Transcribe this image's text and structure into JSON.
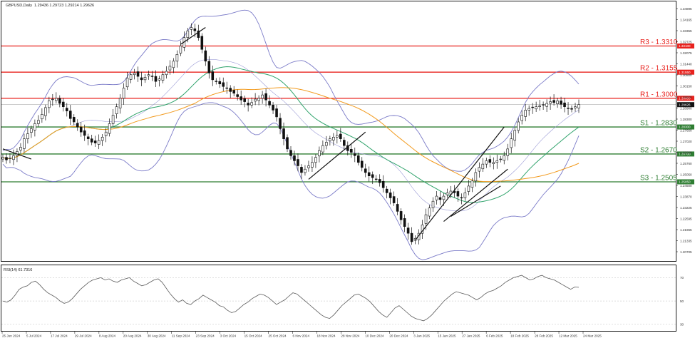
{
  "header": {
    "symbol": "GBPUSD,Daily",
    "ohlc": "1.29436 1.29723 1.29214 1.29626"
  },
  "rsi_label": "RSI(14) 61.7316",
  "chart_data": [
    {
      "type": "candlestick",
      "title": "GBPUSD,Daily",
      "ylim": [
        1.204,
        1.357
      ],
      "y_ticks": [
        "1.34895",
        "1.34165",
        "1.33355",
        "1.32725",
        "1.32075",
        "1.31440",
        "1.30800",
        "1.30150",
        "1.29520",
        "1.28900",
        "1.28300",
        "1.27650",
        "1.27020",
        "1.26390",
        "1.25760",
        "1.25050",
        "1.24500",
        "1.23870",
        "1.23225",
        "1.22595",
        "1.21965",
        "1.21335",
        "1.20705"
      ],
      "x_ticks": [
        "25 Jun 2024",
        "5 Jul 2024",
        "17 Jul 2024",
        "29 Jul 2024",
        "8 Aug 2024",
        "20 Aug 2024",
        "30 Aug 2024",
        "11 Sep 2024",
        "23 Sep 2024",
        "3 Oct 2024",
        "15 Oct 2024",
        "25 Oct 2024",
        "6 Nov 2024",
        "18 Nov 2024",
        "28 Nov 2024",
        "10 Dec 2024",
        "20 Dec 2024",
        "3 Jan 2025",
        "15 Jan 2025",
        "27 Jan 2025",
        "6 Feb 2025",
        "18 Feb 2025",
        "28 Feb 2025",
        "12 Mar 2025",
        "24 Mar 2025"
      ],
      "current_price": "1.29626",
      "levels": [
        {
          "label": "R3 - 1.3310",
          "value": 1.331,
          "tag": "1.33100",
          "color": "#e8221e"
        },
        {
          "label": "R2 - 1.3155",
          "value": 1.3155,
          "tag": "1.31550",
          "color": "#e8221e"
        },
        {
          "label": "R1 - 1.3000",
          "value": 1.3,
          "tag": "1.30000",
          "color": "#e8221e"
        },
        {
          "label": "S1 - 1.2830",
          "value": 1.283,
          "tag": "1.28300",
          "color": "#2e7d32"
        },
        {
          "label": "S2 - 1.2670",
          "value": 1.267,
          "tag": "1.26700",
          "color": "#2e7d32"
        },
        {
          "label": "S3 - 1.2505",
          "value": 1.2505,
          "tag": "1.25050",
          "color": "#2e7d32"
        }
      ],
      "closes": [
        1.265,
        1.2635,
        1.2645,
        1.266,
        1.2685,
        1.271,
        1.276,
        1.279,
        1.282,
        1.285,
        1.287,
        1.2905,
        1.2945,
        1.2985,
        1.2995,
        1.3,
        1.297,
        1.295,
        1.2925,
        1.288,
        1.286,
        1.283,
        1.28,
        1.278,
        1.276,
        1.274,
        1.2735,
        1.275,
        1.277,
        1.28,
        1.285,
        1.29,
        1.295,
        1.3,
        1.306,
        1.312,
        1.314,
        1.315,
        1.313,
        1.311,
        1.3125,
        1.314,
        1.313,
        1.31,
        1.3115,
        1.314,
        1.316,
        1.319,
        1.322,
        1.326,
        1.331,
        1.336,
        1.34,
        1.342,
        1.34,
        1.336,
        1.329,
        1.322,
        1.315,
        1.311,
        1.31,
        1.3085,
        1.307,
        1.306,
        1.304,
        1.303,
        1.301,
        1.299,
        1.298,
        1.296,
        1.2975,
        1.2995,
        1.3,
        1.302,
        1.299,
        1.296,
        1.293,
        1.289,
        1.282,
        1.276,
        1.27,
        1.266,
        1.263,
        1.26,
        1.256,
        1.258,
        1.26,
        1.262,
        1.265,
        1.269,
        1.272,
        1.274,
        1.276,
        1.277,
        1.278,
        1.276,
        1.272,
        1.269,
        1.268,
        1.266,
        1.262,
        1.259,
        1.256,
        1.254,
        1.253,
        1.252,
        1.25,
        1.247,
        1.244,
        1.241,
        1.238,
        1.233,
        1.228,
        1.224,
        1.22,
        1.215,
        1.217,
        1.22,
        1.225,
        1.231,
        1.235,
        1.239,
        1.242,
        1.24,
        1.242,
        1.244,
        1.245,
        1.244,
        1.242,
        1.241,
        1.244,
        1.248,
        1.251,
        1.256,
        1.259,
        1.261,
        1.263,
        1.262,
        1.262,
        1.263,
        1.264,
        1.266,
        1.27,
        1.276,
        1.281,
        1.286,
        1.29,
        1.293,
        1.294,
        1.2945,
        1.295,
        1.2955,
        1.296,
        1.297,
        1.298,
        1.2975,
        1.2985,
        1.2965,
        1.295,
        1.294,
        1.2935,
        1.295,
        1.2963
      ]
    },
    {
      "type": "line",
      "title": "RSI(14) 61.7316",
      "ylim": [
        25,
        80
      ],
      "y_ticks": [
        70,
        50,
        30
      ],
      "values": [
        50,
        49,
        51,
        55,
        60,
        62,
        63,
        66,
        67,
        64,
        60,
        57,
        55,
        53,
        50,
        48,
        49,
        52,
        56,
        60,
        63,
        66,
        68,
        69,
        70,
        68,
        69,
        67,
        66,
        68,
        69,
        70,
        67,
        65,
        63,
        64,
        66,
        68,
        69,
        66,
        61,
        56,
        52,
        49,
        51,
        48,
        47,
        50,
        52,
        55,
        53,
        51,
        49,
        46,
        45,
        42,
        40,
        41,
        44,
        47,
        49,
        52,
        54,
        56,
        55,
        53,
        50,
        47,
        49,
        51,
        54,
        57,
        56,
        53,
        50,
        47,
        44,
        41,
        38,
        36,
        35,
        38,
        42,
        46,
        49,
        52,
        55,
        56,
        54,
        52,
        49,
        45,
        41,
        38,
        36,
        40,
        44,
        46,
        43,
        40,
        37,
        35,
        34,
        33,
        35,
        38,
        42,
        46,
        50,
        53,
        56,
        58,
        57,
        56,
        55,
        53,
        51,
        53,
        56,
        58,
        59,
        61,
        63,
        66,
        68,
        70,
        71,
        72,
        70,
        68,
        69,
        71,
        72,
        70,
        69,
        68,
        66,
        64,
        62,
        60,
        62,
        61.73
      ]
    }
  ]
}
